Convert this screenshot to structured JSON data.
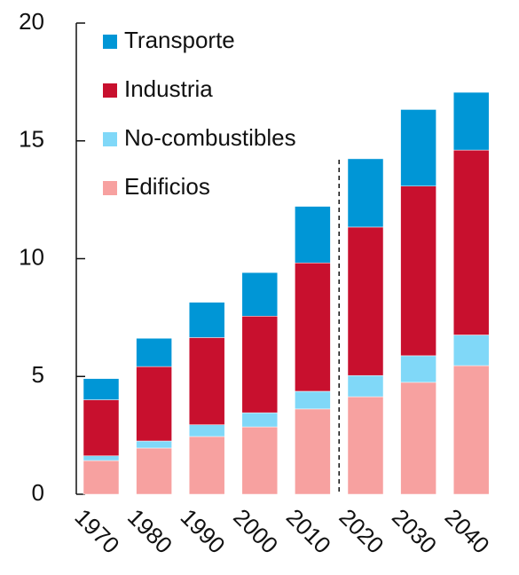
{
  "chart_data": {
    "type": "stacked_bar",
    "categories": [
      "1970",
      "1980",
      "1990",
      "2000",
      "2010",
      "2020",
      "2030",
      "2040"
    ],
    "series": [
      {
        "name": "Edificios",
        "color": "#f7a1a0",
        "values": [
          1.43,
          1.96,
          2.45,
          2.86,
          3.62,
          4.14,
          4.75,
          5.46
        ]
      },
      {
        "name": "No-combustibles",
        "color": "#80d8f8",
        "values": [
          0.2,
          0.3,
          0.5,
          0.6,
          0.75,
          0.9,
          1.13,
          1.3
        ]
      },
      {
        "name": "Industria",
        "color": "#c8102e",
        "values": [
          2.38,
          3.16,
          3.7,
          4.1,
          5.45,
          6.3,
          7.2,
          7.85
        ]
      },
      {
        "name": "Transporte",
        "color": "#0096d6",
        "values": [
          0.9,
          1.2,
          1.5,
          1.85,
          2.4,
          2.9,
          3.25,
          2.45
        ]
      }
    ],
    "ylim": [
      0,
      20
    ],
    "yticks": [
      0,
      5,
      10,
      15,
      20
    ],
    "grid": false,
    "legend": "top-left"
  }
}
